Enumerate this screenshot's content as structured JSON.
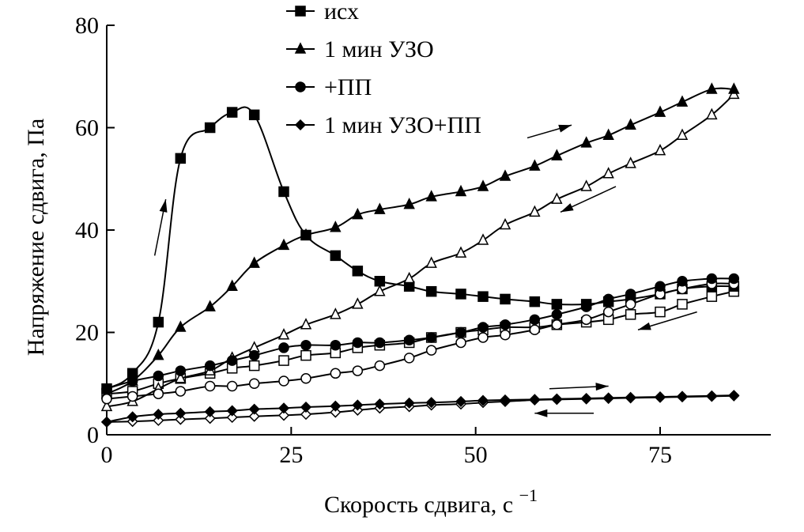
{
  "chart_data": {
    "type": "line",
    "xlabel": "Скорость сдвига, с",
    "xlabel_sup": "−1",
    "ylabel": "Напряжение сдвига, Па",
    "xlim": [
      0,
      90
    ],
    "ylim": [
      0,
      80
    ],
    "x_ticks": [
      0,
      25,
      50,
      75
    ],
    "y_ticks": [
      0,
      20,
      40,
      60,
      80
    ],
    "grid": false,
    "legend_position": "top-center",
    "series": [
      {
        "name": "исх",
        "marker": "square",
        "color": "#000000",
        "up": {
          "x": [
            0,
            3.5,
            7,
            10,
            14,
            17,
            20,
            24,
            27,
            31,
            34,
            37,
            41,
            44,
            48,
            51,
            54,
            58,
            61,
            65,
            68,
            71,
            75,
            78,
            82,
            85
          ],
          "y": [
            9,
            12,
            22,
            54,
            60,
            63,
            62.5,
            47.5,
            39,
            35,
            32,
            30,
            29,
            28,
            27.5,
            27,
            26.5,
            26,
            25.5,
            25.5,
            26,
            26.5,
            27.5,
            28.5,
            29,
            29
          ]
        },
        "down": {
          "x": [
            0,
            3.5,
            7,
            10,
            14,
            17,
            20,
            24,
            27,
            31,
            34,
            37,
            41,
            44,
            48,
            51,
            54,
            58,
            61,
            65,
            68,
            71,
            75,
            78,
            82,
            85
          ],
          "y": [
            8,
            8.5,
            10,
            11,
            12,
            13,
            13.5,
            14.5,
            15.5,
            16,
            17,
            17.5,
            18,
            19,
            20,
            20.5,
            21,
            21,
            21.5,
            22,
            22.5,
            23.5,
            24,
            25.5,
            27,
            28
          ]
        }
      },
      {
        "name": "1 мин УЗО",
        "marker": "triangle",
        "color": "#000000",
        "up": {
          "x": [
            0,
            3.5,
            7,
            10,
            14,
            17,
            20,
            24,
            27,
            31,
            34,
            37,
            41,
            44,
            48,
            51,
            54,
            58,
            61,
            65,
            68,
            71,
            75,
            78,
            82,
            85
          ],
          "y": [
            8,
            10.5,
            15.5,
            21,
            25,
            29,
            33.5,
            37,
            39,
            40.5,
            43,
            44,
            45,
            46.5,
            47.5,
            48.5,
            50.5,
            52.5,
            54.5,
            57,
            58.5,
            60.5,
            63,
            65,
            67.5,
            67.5
          ]
        },
        "down": {
          "x": [
            0,
            3.5,
            7,
            10,
            14,
            17,
            20,
            24,
            27,
            31,
            34,
            37,
            41,
            44,
            48,
            51,
            54,
            58,
            61,
            65,
            68,
            71,
            75,
            78,
            82,
            85
          ],
          "y": [
            5.5,
            6.5,
            9,
            11,
            12.5,
            15,
            17,
            19.5,
            21.5,
            23.5,
            25.5,
            28,
            30.5,
            33.5,
            35.5,
            38,
            41,
            43.5,
            46,
            48.5,
            51,
            53,
            55.5,
            58.5,
            62.5,
            66.5
          ]
        }
      },
      {
        "name": "+ПП",
        "marker": "circle",
        "color": "#000000",
        "up": {
          "x": [
            0,
            3.5,
            7,
            10,
            14,
            17,
            20,
            24,
            27,
            31,
            34,
            37,
            41,
            44,
            48,
            51,
            54,
            58,
            61,
            65,
            68,
            71,
            75,
            78,
            82,
            85
          ],
          "y": [
            9,
            10.5,
            11.5,
            12.5,
            13.5,
            14.5,
            15.5,
            17,
            17.5,
            17.5,
            18,
            18,
            18.5,
            19,
            20,
            21,
            21.5,
            22.5,
            23.5,
            25,
            26.5,
            27.5,
            29,
            30,
            30.5,
            30.5
          ]
        },
        "down": {
          "x": [
            0,
            3.5,
            7,
            10,
            14,
            17,
            20,
            24,
            27,
            31,
            34,
            37,
            41,
            44,
            48,
            51,
            54,
            58,
            61,
            65,
            68,
            71,
            75,
            78,
            82,
            85
          ],
          "y": [
            7,
            7.5,
            8,
            8.5,
            9.5,
            9.5,
            10,
            10.5,
            11,
            12,
            12.5,
            13.5,
            15,
            16.5,
            18,
            19,
            19.5,
            20.5,
            21.5,
            22.5,
            24,
            25.5,
            27.5,
            28.5,
            29.5,
            29.5
          ]
        }
      },
      {
        "name": "1 мин УЗО+ПП",
        "marker": "diamond",
        "color": "#000000",
        "up": {
          "x": [
            0,
            3.5,
            7,
            10,
            14,
            17,
            20,
            24,
            27,
            31,
            34,
            37,
            41,
            44,
            48,
            51,
            54,
            58,
            61,
            65,
            68,
            71,
            75,
            78,
            82,
            85
          ],
          "y": [
            2.5,
            3.5,
            4,
            4.2,
            4.5,
            4.7,
            5,
            5.2,
            5.4,
            5.6,
            5.8,
            6,
            6.2,
            6.3,
            6.5,
            6.7,
            6.8,
            6.9,
            7,
            7.1,
            7.2,
            7.3,
            7.4,
            7.5,
            7.6,
            7.7
          ]
        },
        "down": {
          "x": [
            0,
            3.5,
            7,
            10,
            14,
            17,
            20,
            24,
            27,
            31,
            34,
            37,
            41,
            44,
            48,
            51,
            54,
            58,
            61,
            65,
            68,
            71,
            75,
            78,
            82,
            85
          ],
          "y": [
            2.5,
            2.6,
            2.8,
            3,
            3.2,
            3.4,
            3.6,
            3.8,
            4,
            4.4,
            4.8,
            5.2,
            5.5,
            5.8,
            6,
            6.3,
            6.5,
            6.8,
            6.9,
            7,
            7.1,
            7.2,
            7.3,
            7.4,
            7.5,
            7.6
          ]
        }
      }
    ]
  }
}
